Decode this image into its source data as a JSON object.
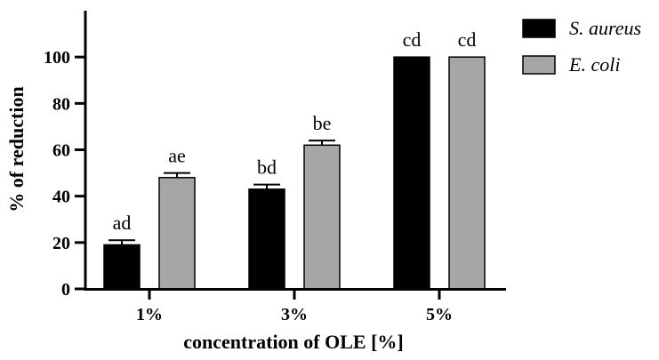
{
  "chart_data": {
    "type": "bar",
    "title": "",
    "xlabel": "concentration of OLE [%]",
    "ylabel": "% of reduction",
    "ylim": [
      0,
      120
    ],
    "yticks": [
      0,
      20,
      40,
      60,
      80,
      100
    ],
    "grid": false,
    "legend_position": "right",
    "categories": [
      "1%",
      "3%",
      "5%"
    ],
    "series": [
      {
        "name": "S. aureus",
        "color": "#000000",
        "values": [
          19,
          43,
          100
        ],
        "errors": [
          2,
          2,
          0
        ],
        "labels": [
          "ad",
          "bd",
          "cd"
        ]
      },
      {
        "name": "E. coli",
        "color": "#a6a6a6",
        "values": [
          48,
          62,
          100
        ],
        "errors": [
          2,
          2,
          0
        ],
        "labels": [
          "ae",
          "be",
          "cd"
        ]
      }
    ]
  }
}
